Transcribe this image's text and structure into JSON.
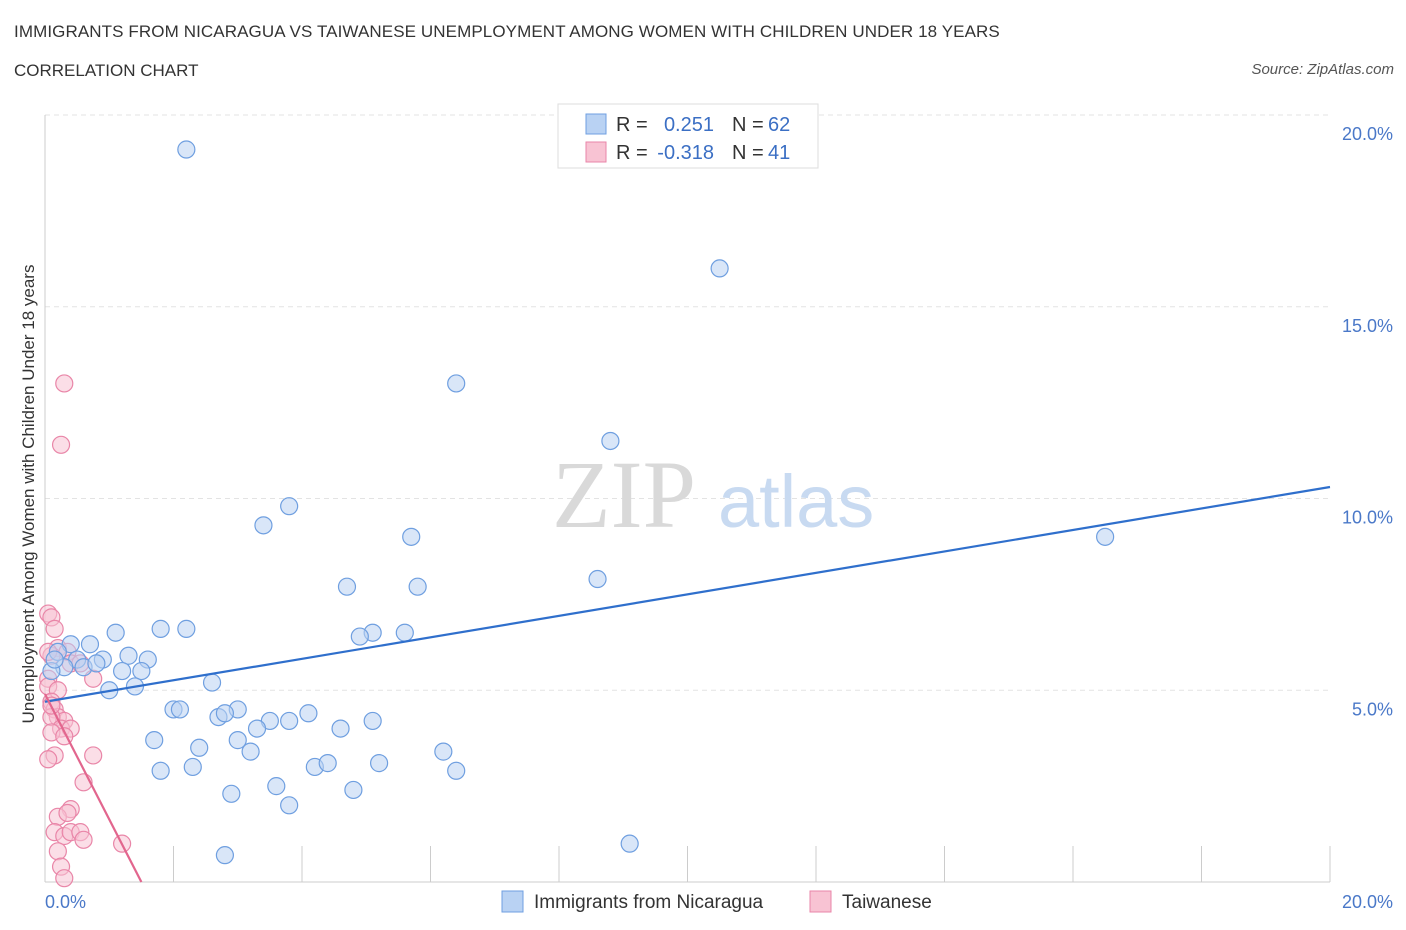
{
  "header": {
    "title": "IMMIGRANTS FROM NICARAGUA VS TAIWANESE UNEMPLOYMENT AMONG WOMEN WITH CHILDREN UNDER 18 YEARS",
    "subtitle": "CORRELATION CHART",
    "source": "Source: ZipAtlas.com"
  },
  "watermark": {
    "zip": "ZIP",
    "atlas": "atlas"
  },
  "legend": {
    "r_label": "R =",
    "n_label": "N =",
    "rows": [
      {
        "r": "0.251",
        "n": "62",
        "color": "#a9c8f5"
      },
      {
        "r": "-0.318",
        "n": "41",
        "color": "#f6b8cb"
      }
    ]
  },
  "colors": {
    "blue_fill": "#b9d2f3",
    "blue_stroke": "#6f9fe0",
    "blue_line": "#2f6fcc",
    "pink_fill": "#f8c3d3",
    "pink_stroke": "#e986a8",
    "pink_line": "#e2668e",
    "tick_text": "#4a78c8"
  },
  "chart_data": {
    "type": "scatter",
    "xlabel": "",
    "ylabel": "Unemployment Among Women with Children Under 18 years",
    "xlim": [
      0,
      20
    ],
    "ylim": [
      0,
      20
    ],
    "x_tick_labels": [
      "0.0%",
      "20.0%"
    ],
    "y_ticks": [
      5,
      10,
      15,
      20
    ],
    "y_tick_labels": [
      "5.0%",
      "10.0%",
      "15.0%",
      "20.0%"
    ],
    "grid": true,
    "legend_position": "top-center",
    "series": [
      {
        "name": "Immigrants from Nicaragua",
        "color": "#6f9fe0",
        "trend": {
          "x": [
            0,
            20
          ],
          "y": [
            4.7,
            10.3
          ]
        },
        "points": [
          [
            2.2,
            19.1
          ],
          [
            10.5,
            16.0
          ],
          [
            6.4,
            13.0
          ],
          [
            8.8,
            11.5
          ],
          [
            3.8,
            9.8
          ],
          [
            3.4,
            9.3
          ],
          [
            5.7,
            9.0
          ],
          [
            16.5,
            9.0
          ],
          [
            8.6,
            7.9
          ],
          [
            4.7,
            7.7
          ],
          [
            5.8,
            7.7
          ],
          [
            1.8,
            6.6
          ],
          [
            2.2,
            6.6
          ],
          [
            5.1,
            6.5
          ],
          [
            4.9,
            6.4
          ],
          [
            5.6,
            6.5
          ],
          [
            1.1,
            6.5
          ],
          [
            0.4,
            6.2
          ],
          [
            0.7,
            6.2
          ],
          [
            0.9,
            5.8
          ],
          [
            1.3,
            5.9
          ],
          [
            1.6,
            5.8
          ],
          [
            0.2,
            6.0
          ],
          [
            0.5,
            5.8
          ],
          [
            0.3,
            5.6
          ],
          [
            0.6,
            5.6
          ],
          [
            0.8,
            5.7
          ],
          [
            1.2,
            5.5
          ],
          [
            1.5,
            5.5
          ],
          [
            1.0,
            5.0
          ],
          [
            1.4,
            5.1
          ],
          [
            2.6,
            5.2
          ],
          [
            2.0,
            4.5
          ],
          [
            2.1,
            4.5
          ],
          [
            3.0,
            4.5
          ],
          [
            2.7,
            4.3
          ],
          [
            2.8,
            4.4
          ],
          [
            4.1,
            4.4
          ],
          [
            3.5,
            4.2
          ],
          [
            3.8,
            4.2
          ],
          [
            5.1,
            4.2
          ],
          [
            3.3,
            4.0
          ],
          [
            4.6,
            4.0
          ],
          [
            3.0,
            3.7
          ],
          [
            1.7,
            3.7
          ],
          [
            2.4,
            3.5
          ],
          [
            3.2,
            3.4
          ],
          [
            6.2,
            3.4
          ],
          [
            2.3,
            3.0
          ],
          [
            4.2,
            3.0
          ],
          [
            4.4,
            3.1
          ],
          [
            5.2,
            3.1
          ],
          [
            1.8,
            2.9
          ],
          [
            6.4,
            2.9
          ],
          [
            3.6,
            2.5
          ],
          [
            2.9,
            2.3
          ],
          [
            4.8,
            2.4
          ],
          [
            3.8,
            2.0
          ],
          [
            9.1,
            1.0
          ],
          [
            2.8,
            0.7
          ],
          [
            0.1,
            5.5
          ],
          [
            0.15,
            5.8
          ]
        ]
      },
      {
        "name": "Taiwanese",
        "color": "#e986a8",
        "trend": {
          "x": [
            0,
            1.5
          ],
          "y": [
            4.9,
            0
          ]
        },
        "points": [
          [
            0.3,
            13.0
          ],
          [
            0.25,
            11.4
          ],
          [
            0.05,
            7.0
          ],
          [
            0.1,
            6.9
          ],
          [
            0.15,
            6.6
          ],
          [
            0.2,
            6.1
          ],
          [
            0.35,
            6.0
          ],
          [
            0.1,
            5.9
          ],
          [
            0.4,
            5.7
          ],
          [
            0.55,
            5.7
          ],
          [
            0.05,
            5.3
          ],
          [
            0.75,
            5.3
          ],
          [
            0.05,
            5.1
          ],
          [
            0.2,
            5.0
          ],
          [
            0.1,
            4.7
          ],
          [
            0.15,
            4.5
          ],
          [
            0.2,
            4.3
          ],
          [
            0.3,
            4.2
          ],
          [
            0.1,
            4.3
          ],
          [
            0.25,
            4.0
          ],
          [
            0.4,
            4.0
          ],
          [
            0.1,
            3.9
          ],
          [
            0.3,
            3.8
          ],
          [
            0.15,
            3.3
          ],
          [
            0.05,
            3.2
          ],
          [
            0.75,
            3.3
          ],
          [
            0.6,
            2.6
          ],
          [
            0.4,
            1.9
          ],
          [
            0.2,
            1.7
          ],
          [
            0.35,
            1.8
          ],
          [
            0.15,
            1.3
          ],
          [
            0.3,
            1.2
          ],
          [
            0.4,
            1.3
          ],
          [
            0.55,
            1.3
          ],
          [
            0.6,
            1.1
          ],
          [
            0.2,
            0.8
          ],
          [
            0.25,
            0.4
          ],
          [
            0.3,
            0.1
          ],
          [
            1.2,
            1.0
          ],
          [
            0.1,
            4.6
          ],
          [
            0.05,
            6.0
          ]
        ]
      }
    ]
  }
}
